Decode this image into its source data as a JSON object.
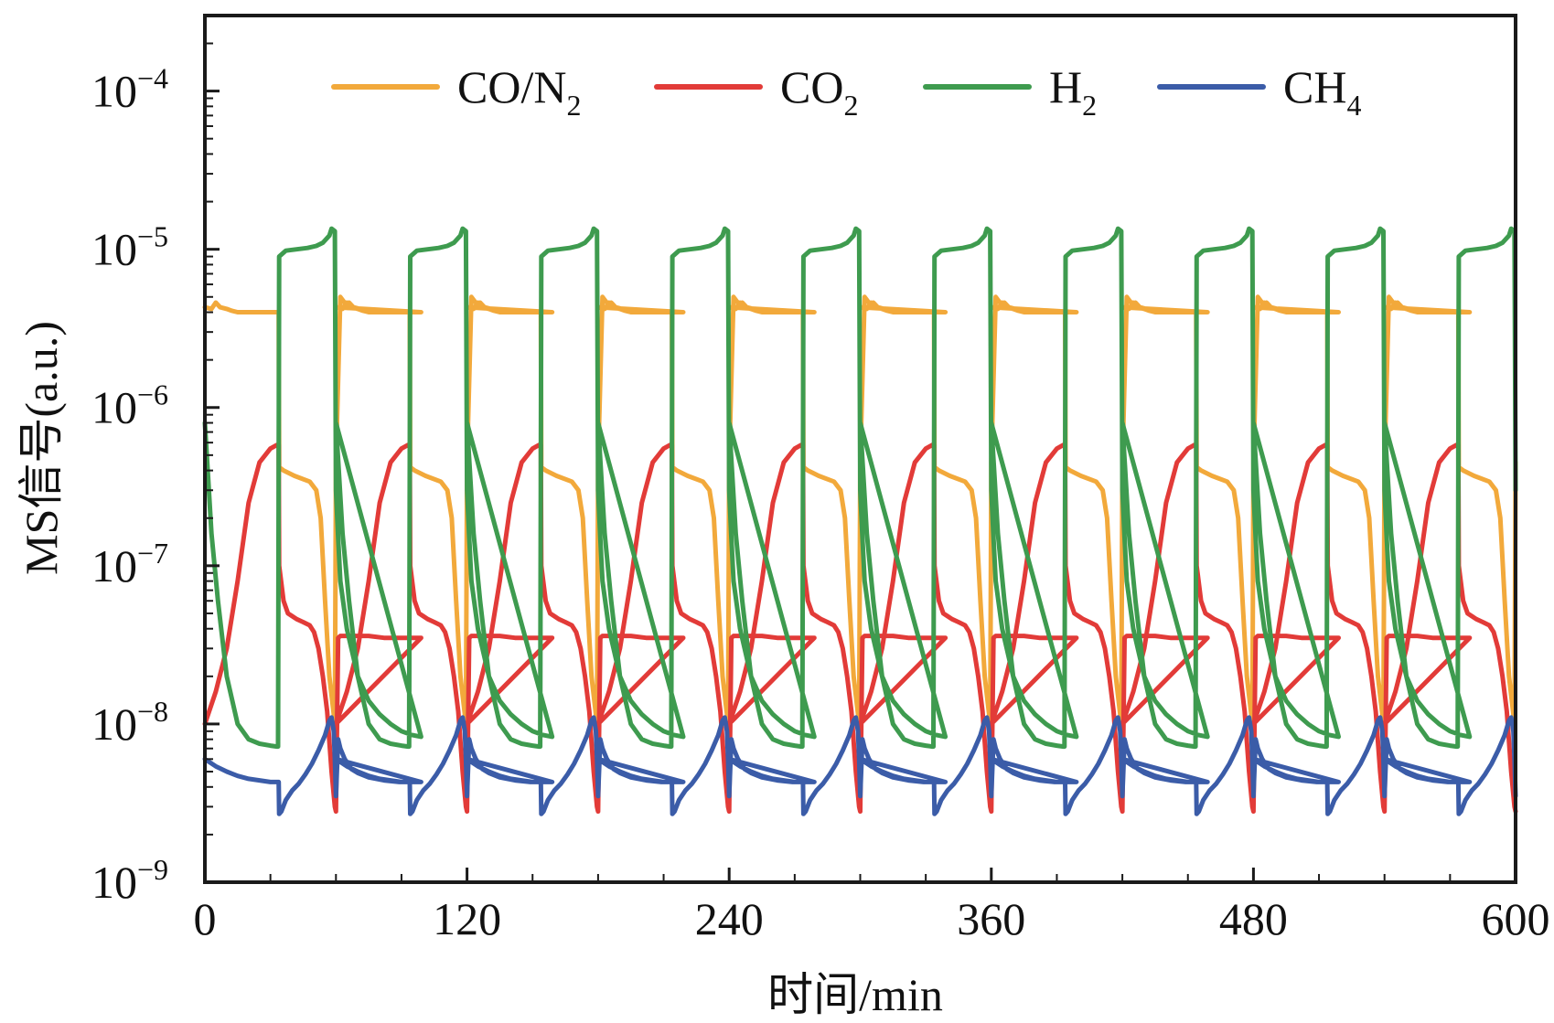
{
  "chart_data": {
    "type": "line",
    "xlabel": "时间/min",
    "ylabel": "MS信号(a.u.)",
    "y_scale": "log",
    "xlim": [
      0,
      600
    ],
    "ylim": [
      1e-09,
      0.0003
    ],
    "x_ticks": [
      0,
      120,
      240,
      360,
      480,
      600
    ],
    "x_tick_labels": [
      "0",
      "120",
      "240",
      "360",
      "480",
      "600"
    ],
    "y_ticks": [
      1e-09,
      1e-08,
      1e-07,
      1e-06,
      1e-05,
      0.0001
    ],
    "y_tick_labels": [
      {
        "base": "10",
        "exp": "−9"
      },
      {
        "base": "10",
        "exp": "−8"
      },
      {
        "base": "10",
        "exp": "−7"
      },
      {
        "base": "10",
        "exp": "−6"
      },
      {
        "base": "10",
        "exp": "−5"
      },
      {
        "base": "10",
        "exp": "−4"
      }
    ],
    "grid": false,
    "legend_position": "top",
    "cycle_period_min": 60,
    "n_cycles": 10,
    "series": [
      {
        "name": "CO/N2",
        "label_base": "CO/N",
        "label_sub": "2",
        "color": "#F2A93B",
        "x": [
          0,
          3,
          5,
          7,
          10,
          12,
          15,
          19,
          22,
          26,
          28,
          31,
          33,
          33.8,
          34,
          36,
          41,
          48,
          51,
          53,
          55,
          57,
          59.5,
          60,
          62,
          65,
          66,
          68,
          71,
          77,
          82,
          89,
          95,
          99
        ],
        "y": [
          4.3e-06,
          4.2e-06,
          4.6e-06,
          4.3e-06,
          4.2e-06,
          4.1e-06,
          4e-06,
          4e-06,
          4e-06,
          4e-06,
          4e-06,
          4e-06,
          4e-06,
          4e-06,
          4.2e-07,
          4e-07,
          3.7e-07,
          3.4e-07,
          3e-07,
          2e-07,
          6e-08,
          2e-08,
          1e-08,
          4.5e-07,
          5e-06,
          4.4e-06,
          4.6e-06,
          4.3e-06,
          4.2e-06,
          4.1e-06,
          4e-06,
          4e-06,
          4e-06,
          4e-06
        ]
      },
      {
        "name": "CO2",
        "label_base": "CO",
        "label_sub": "2",
        "color": "#E23B38",
        "x": [
          0,
          5,
          10,
          15,
          20,
          25,
          30,
          33,
          33.8,
          34,
          36,
          38,
          40,
          42,
          45,
          48,
          50,
          52,
          54,
          56,
          58,
          59.5,
          60,
          61,
          62,
          64,
          67,
          70,
          75,
          82,
          89,
          95,
          99
        ],
        "y": [
          1e-08,
          1.6e-08,
          3e-08,
          8e-08,
          2.5e-07,
          4.5e-07,
          5.5e-07,
          5.8e-07,
          5.8e-07,
          1e-07,
          6e-08,
          5e-08,
          4.8e-08,
          4.6e-08,
          4.4e-08,
          4.2e-08,
          3.8e-08,
          3e-08,
          2e-08,
          1.2e-08,
          5e-09,
          3e-09,
          2.8e-09,
          3.5e-08,
          3.6e-08,
          3.6e-08,
          3.6e-08,
          3.6e-08,
          3.6e-08,
          3.5e-08,
          3.5e-08,
          3.5e-08,
          3.5e-08
        ]
      },
      {
        "name": "H2",
        "label_base": "H",
        "label_sub": "2",
        "color": "#3E9B4F",
        "x": [
          0,
          3,
          6,
          10,
          15,
          20,
          25,
          30,
          33,
          33.5,
          34,
          37,
          42,
          47,
          51,
          54,
          57,
          58,
          59.5,
          60,
          61,
          62,
          65,
          70,
          75,
          80,
          85,
          90,
          95,
          99
        ],
        "y": [
          8e-07,
          1.6e-07,
          6e-08,
          2e-08,
          1e-08,
          8e-09,
          7.5e-09,
          7.3e-09,
          7.2e-09,
          7.2e-09,
          9e-06,
          9.8e-06,
          1e-05,
          1.02e-05,
          1.05e-05,
          1.1e-05,
          1.22e-05,
          1.35e-05,
          1.3e-05,
          3e-07,
          1.5e-07,
          8e-08,
          4e-08,
          2e-08,
          1.4e-08,
          1.15e-08,
          1e-08,
          9e-09,
          8.5e-09,
          8.3e-09
        ]
      },
      {
        "name": "CH4",
        "label_base": "CH",
        "label_sub": "4",
        "color": "#3B5CA8",
        "x": [
          0,
          5,
          10,
          15,
          20,
          25,
          30,
          33,
          33.8,
          34,
          35,
          37,
          40,
          43,
          46,
          49,
          52,
          55,
          57,
          58,
          59,
          59.5,
          60,
          61,
          62,
          64,
          67,
          70,
          75,
          82,
          89,
          95,
          99
        ],
        "y": [
          6e-09,
          5.4e-09,
          5e-09,
          4.7e-09,
          4.5e-09,
          4.4e-09,
          4.3e-09,
          4.3e-09,
          4.3e-09,
          2.7e-09,
          2.8e-09,
          3.3e-09,
          3.8e-09,
          4.2e-09,
          4.8e-09,
          5.6e-09,
          6.8e-09,
          8.5e-09,
          1.05e-08,
          1.1e-08,
          9e-09,
          6e-09,
          3.5e-09,
          8e-09,
          7e-09,
          6e-09,
          5.2e-09,
          4.9e-09,
          4.6e-09,
          4.4e-09,
          4.3e-09,
          4.3e-09,
          4.3e-09
        ]
      }
    ]
  }
}
